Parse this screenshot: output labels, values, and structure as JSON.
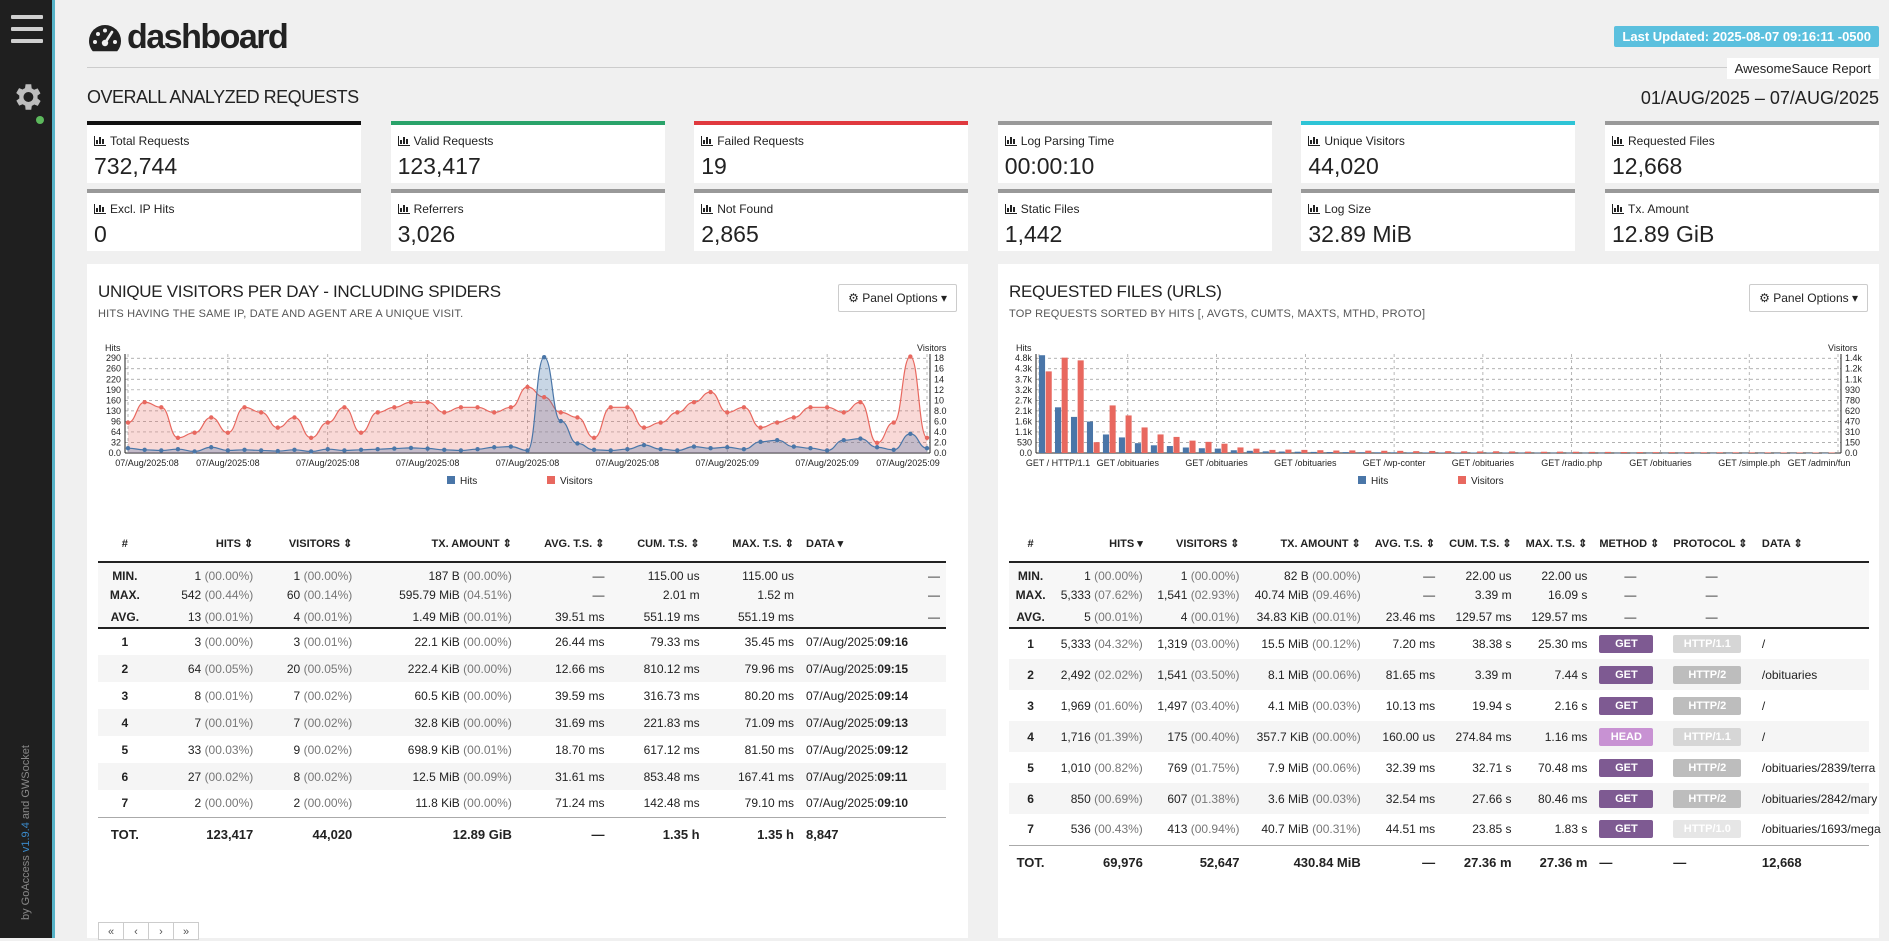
{
  "header": {
    "logo_text": "dashboard",
    "last_updated": "Last Updated: 2025-08-07 09:16:11 -0500",
    "report_title": "AwesomeSauce Report",
    "section_title": "OVERALL ANALYZED REQUESTS",
    "date_range": "01/AUG/2025 – 07/AUG/2025"
  },
  "sidebar": {
    "version_prefix": "by GoAccess",
    "version": "v1.9.4",
    "and": "and",
    "gwsocket": "GWSocket"
  },
  "cards": [
    {
      "label": "Total Requests",
      "value": "732,744",
      "color": "#111111"
    },
    {
      "label": "Valid Requests",
      "value": "123,417",
      "color": "#2aa36a"
    },
    {
      "label": "Failed Requests",
      "value": "19",
      "color": "#e0393e"
    },
    {
      "label": "Log Parsing Time",
      "value": "00:00:10",
      "color": "#999999"
    },
    {
      "label": "Unique Visitors",
      "value": "44,020",
      "color": "#2ec4d6"
    },
    {
      "label": "Requested Files",
      "value": "12,668",
      "color": "#999999"
    },
    {
      "label": "Excl. IP Hits",
      "value": "0",
      "color": "#999999"
    },
    {
      "label": "Referrers",
      "value": "3,026",
      "color": "#999999"
    },
    {
      "label": "Not Found",
      "value": "2,865",
      "color": "#999999"
    },
    {
      "label": "Static Files",
      "value": "1,442",
      "color": "#999999"
    },
    {
      "label": "Log Size",
      "value": "32.89 MiB",
      "color": "#999999"
    },
    {
      "label": "Tx. Amount",
      "value": "12.89 GiB",
      "color": "#999999"
    }
  ],
  "visitors_panel": {
    "title": "UNIQUE VISITORS PER DAY - INCLUDING SPIDERS",
    "subtitle": "HITS HAVING THE SAME IP, DATE AND AGENT ARE A UNIQUE VISIT.",
    "options": "Panel Options",
    "columns": [
      "#",
      "HITS",
      "VISITORS",
      "TX. AMOUNT",
      "AVG. T.S.",
      "CUM. T.S.",
      "MAX. T.S.",
      "DATA"
    ],
    "stats": [
      {
        "k": "MIN.",
        "hits": "1",
        "hits_pct": "(00.00%)",
        "vis": "1",
        "vis_pct": "(00.00%)",
        "tx": "187 B",
        "tx_pct": "(00.00%)",
        "avg": "—",
        "cum": "115.00 us",
        "max": "115.00 us",
        "data": "—"
      },
      {
        "k": "MAX.",
        "hits": "542",
        "hits_pct": "(00.44%)",
        "vis": "60",
        "vis_pct": "(00.14%)",
        "tx": "595.79 MiB",
        "tx_pct": "(04.51%)",
        "avg": "—",
        "cum": "2.01 m",
        "max": "1.52 m",
        "data": "—"
      },
      {
        "k": "AVG.",
        "hits": "13",
        "hits_pct": "(00.01%)",
        "vis": "4",
        "vis_pct": "(00.01%)",
        "tx": "1.49 MiB",
        "tx_pct": "(00.01%)",
        "avg": "39.51 ms",
        "cum": "551.19 ms",
        "max": "551.19 ms",
        "data": "—"
      }
    ],
    "rows": [
      {
        "n": "1",
        "hits": "3",
        "hits_pct": "(00.00%)",
        "vis": "3",
        "vis_pct": "(00.01%)",
        "tx": "22.1 KiB",
        "tx_pct": "(00.00%)",
        "avg": "26.44 ms",
        "cum": "79.33 ms",
        "max": "35.45 ms",
        "date": "07/Aug/2025:",
        "time": "09:16"
      },
      {
        "n": "2",
        "hits": "64",
        "hits_pct": "(00.05%)",
        "vis": "20",
        "vis_pct": "(00.05%)",
        "tx": "222.4 KiB",
        "tx_pct": "(00.00%)",
        "avg": "12.66 ms",
        "cum": "810.12 ms",
        "max": "79.96 ms",
        "date": "07/Aug/2025:",
        "time": "09:15"
      },
      {
        "n": "3",
        "hits": "8",
        "hits_pct": "(00.01%)",
        "vis": "7",
        "vis_pct": "(00.02%)",
        "tx": "60.5 KiB",
        "tx_pct": "(00.00%)",
        "avg": "39.59 ms",
        "cum": "316.73 ms",
        "max": "80.20 ms",
        "date": "07/Aug/2025:",
        "time": "09:14"
      },
      {
        "n": "4",
        "hits": "7",
        "hits_pct": "(00.01%)",
        "vis": "7",
        "vis_pct": "(00.02%)",
        "tx": "32.8 KiB",
        "tx_pct": "(00.00%)",
        "avg": "31.69 ms",
        "cum": "221.83 ms",
        "max": "71.09 ms",
        "date": "07/Aug/2025:",
        "time": "09:13"
      },
      {
        "n": "5",
        "hits": "33",
        "hits_pct": "(00.03%)",
        "vis": "9",
        "vis_pct": "(00.02%)",
        "tx": "698.9 KiB",
        "tx_pct": "(00.01%)",
        "avg": "18.70 ms",
        "cum": "617.12 ms",
        "max": "81.50 ms",
        "date": "07/Aug/2025:",
        "time": "09:12"
      },
      {
        "n": "6",
        "hits": "27",
        "hits_pct": "(00.02%)",
        "vis": "8",
        "vis_pct": "(00.02%)",
        "tx": "12.5 MiB",
        "tx_pct": "(00.09%)",
        "avg": "31.61 ms",
        "cum": "853.48 ms",
        "max": "167.41 ms",
        "date": "07/Aug/2025:",
        "time": "09:11"
      },
      {
        "n": "7",
        "hits": "2",
        "hits_pct": "(00.00%)",
        "vis": "2",
        "vis_pct": "(00.00%)",
        "tx": "11.8 KiB",
        "tx_pct": "(00.00%)",
        "avg": "71.24 ms",
        "cum": "142.48 ms",
        "max": "79.10 ms",
        "date": "07/Aug/2025:",
        "time": "09:10"
      }
    ],
    "total": {
      "k": "TOT.",
      "hits": "123,417",
      "vis": "44,020",
      "tx": "12.89 GiB",
      "avg": "—",
      "cum": "1.35 h",
      "max": "1.35 h",
      "data": "8,847"
    },
    "pager": [
      "«",
      "‹",
      "›",
      "»"
    ]
  },
  "files_panel": {
    "title": "REQUESTED FILES (URLS)",
    "subtitle": "TOP REQUESTS SORTED BY HITS [, AVGTS, CUMTS, MAXTS, MTHD, PROTO]",
    "options": "Panel Options",
    "columns": [
      "#",
      "HITS",
      "VISITORS",
      "TX. AMOUNT",
      "AVG. T.S.",
      "CUM. T.S.",
      "MAX. T.S.",
      "METHOD",
      "PROTOCOL",
      "DATA"
    ],
    "stats": [
      {
        "k": "MIN.",
        "hits": "1",
        "hits_pct": "(00.00%)",
        "vis": "1",
        "vis_pct": "(00.00%)",
        "tx": "82 B",
        "tx_pct": "(00.00%)",
        "avg": "—",
        "cum": "22.00 us",
        "max": "22.00 us",
        "method": "—",
        "proto": "—",
        "data": ""
      },
      {
        "k": "MAX.",
        "hits": "5,333",
        "hits_pct": "(07.62%)",
        "vis": "1,541",
        "vis_pct": "(02.93%)",
        "tx": "40.74 MiB",
        "tx_pct": "(09.46%)",
        "avg": "—",
        "cum": "3.39 m",
        "max": "16.09 s",
        "method": "—",
        "proto": "—",
        "data": ""
      },
      {
        "k": "AVG.",
        "hits": "5",
        "hits_pct": "(00.01%)",
        "vis": "4",
        "vis_pct": "(00.01%)",
        "tx": "34.83 KiB",
        "tx_pct": "(00.01%)",
        "avg": "23.46 ms",
        "cum": "129.57 ms",
        "max": "129.57 ms",
        "method": "—",
        "proto": "—",
        "data": ""
      }
    ],
    "rows": [
      {
        "n": "1",
        "hits": "5,333",
        "hits_pct": "(04.32%)",
        "vis": "1,319",
        "vis_pct": "(03.00%)",
        "tx": "15.5 MiB",
        "tx_pct": "(00.12%)",
        "avg": "7.20 ms",
        "cum": "38.38 s",
        "max": "25.30 ms",
        "method": "GET",
        "mclass": "get",
        "proto": "HTTP/1.1",
        "pclass": "h11",
        "data": "/"
      },
      {
        "n": "2",
        "hits": "2,492",
        "hits_pct": "(02.02%)",
        "vis": "1,541",
        "vis_pct": "(03.50%)",
        "tx": "8.1 MiB",
        "tx_pct": "(00.06%)",
        "avg": "81.65 ms",
        "cum": "3.39 m",
        "max": "7.44 s",
        "method": "GET",
        "mclass": "get",
        "proto": "HTTP/2",
        "pclass": "h2",
        "data": "/obituaries"
      },
      {
        "n": "3",
        "hits": "1,969",
        "hits_pct": "(01.60%)",
        "vis": "1,497",
        "vis_pct": "(03.40%)",
        "tx": "4.1 MiB",
        "tx_pct": "(00.03%)",
        "avg": "10.13 ms",
        "cum": "19.94 s",
        "max": "2.16 s",
        "method": "GET",
        "mclass": "get",
        "proto": "HTTP/2",
        "pclass": "h2",
        "data": "/"
      },
      {
        "n": "4",
        "hits": "1,716",
        "hits_pct": "(01.39%)",
        "vis": "175",
        "vis_pct": "(00.40%)",
        "tx": "357.7 KiB",
        "tx_pct": "(00.00%)",
        "avg": "160.00 us",
        "cum": "274.84 ms",
        "max": "1.16 ms",
        "method": "HEAD",
        "mclass": "head",
        "proto": "HTTP/1.1",
        "pclass": "h11",
        "data": "/"
      },
      {
        "n": "5",
        "hits": "1,010",
        "hits_pct": "(00.82%)",
        "vis": "769",
        "vis_pct": "(01.75%)",
        "tx": "7.9 MiB",
        "tx_pct": "(00.06%)",
        "avg": "32.39 ms",
        "cum": "32.71 s",
        "max": "70.48 ms",
        "method": "GET",
        "mclass": "get",
        "proto": "HTTP/2",
        "pclass": "h2",
        "data": "/obituaries/2839/terra"
      },
      {
        "n": "6",
        "hits": "850",
        "hits_pct": "(00.69%)",
        "vis": "607",
        "vis_pct": "(01.38%)",
        "tx": "3.6 MiB",
        "tx_pct": "(00.03%)",
        "avg": "32.54 ms",
        "cum": "27.66 s",
        "max": "80.46 ms",
        "method": "GET",
        "mclass": "get",
        "proto": "HTTP/2",
        "pclass": "h2",
        "data": "/obituaries/2842/mary"
      },
      {
        "n": "7",
        "hits": "536",
        "hits_pct": "(00.43%)",
        "vis": "413",
        "vis_pct": "(00.94%)",
        "tx": "40.7 MiB",
        "tx_pct": "(00.31%)",
        "avg": "44.51 ms",
        "cum": "23.85 s",
        "max": "1.83 s",
        "method": "GET",
        "mclass": "get",
        "proto": "HTTP/1.0",
        "pclass": "h10",
        "data": "/obituaries/1693/mega"
      }
    ],
    "total": {
      "k": "TOT.",
      "hits": "69,976",
      "vis": "52,647",
      "tx": "430.84 MiB",
      "avg": "—",
      "cum": "27.36 m",
      "max": "27.36 m",
      "method": "—",
      "proto": "—",
      "data": "12,668"
    }
  },
  "chart_data": [
    {
      "type": "area",
      "ylabel": "Hits",
      "y2label": "Visitors",
      "y_ticks": [
        "0.0",
        "32",
        "64",
        "96",
        "130",
        "160",
        "190",
        "220",
        "260",
        "290"
      ],
      "y2_ticks": [
        "0.0",
        "2.0",
        "4.0",
        "6.0",
        "8.0",
        "10",
        "12",
        "14",
        "16",
        "18"
      ],
      "ylim": [
        0,
        310
      ],
      "y2lim": [
        0,
        19.5
      ],
      "x_ticks": [
        "07/Aug/2025:08",
        "07/Aug/2025:08",
        "07/Aug/2025:08",
        "07/Aug/2025:08",
        "07/Aug/2025:08",
        "07/Aug/2025:08",
        "07/Aug/2025:09",
        "07/Aug/2025:09",
        "07/Aug/2025:09"
      ],
      "series": [
        {
          "name": "Hits",
          "axis": "left",
          "color": "#4a76a8",
          "values": [
            15,
            10,
            8,
            12,
            5,
            18,
            8,
            10,
            8,
            6,
            10,
            5,
            12,
            8,
            10,
            12,
            14,
            16,
            14,
            10,
            8,
            12,
            18,
            20,
            8,
            300,
            100,
            30,
            10,
            8,
            12,
            25,
            12,
            8,
            20,
            15,
            18,
            12,
            35,
            40,
            20,
            15,
            8,
            40,
            45,
            18,
            10,
            60,
            15
          ]
        },
        {
          "name": "Visitors",
          "axis": "right",
          "color": "#e8685f",
          "values": [
            6,
            10,
            9,
            3,
            4,
            7,
            4,
            9,
            8,
            5,
            7,
            3,
            6,
            9,
            4,
            8,
            9,
            10,
            10,
            8,
            9,
            9,
            8,
            9,
            13,
            11,
            8,
            7,
            3,
            9,
            9,
            5,
            6,
            8,
            10,
            12,
            8,
            9,
            5,
            6,
            7,
            9,
            9,
            8,
            10,
            2,
            6,
            19,
            3
          ]
        }
      ]
    },
    {
      "type": "bar",
      "ylabel": "Hits",
      "y2label": "Visitors",
      "y_ticks": [
        "0.0",
        "530",
        "1.1k",
        "1.6k",
        "2.1k",
        "2.7k",
        "3.2k",
        "3.7k",
        "4.3k",
        "4.8k"
      ],
      "y2_ticks": [
        "0.0",
        "150",
        "310",
        "470",
        "620",
        "780",
        "930",
        "1.1k",
        "1.2k",
        "1.4k"
      ],
      "ylim": [
        0,
        5400
      ],
      "y2lim": [
        0,
        1600
      ],
      "x_ticks": [
        "GET / HTTP/1.1",
        "GET /obituaries",
        "GET /obituaries",
        "GET /obituaries",
        "GET /wp-conter",
        "GET /obituaries",
        "GET /radio.php",
        "GET /obituaries",
        "GET /simple.ph",
        "GET /admin/fun"
      ],
      "series": [
        {
          "name": "Hits",
          "axis": "left",
          "color": "#4a76a8",
          "values": [
            5333,
            2492,
            1969,
            1716,
            1010,
            850,
            536,
            420,
            380,
            300,
            260,
            240,
            150,
            120,
            90,
            80,
            70,
            60,
            55,
            50,
            45,
            40,
            38,
            35,
            32,
            30,
            28,
            26,
            24,
            22,
            20,
            18,
            16,
            15,
            14,
            13,
            12,
            11,
            10,
            10,
            9,
            9,
            8,
            8,
            8,
            7,
            7,
            7,
            6,
            6
          ]
        },
        {
          "name": "Visitors",
          "axis": "right",
          "color": "#e8685f",
          "values": [
            1319,
            1541,
            1497,
            175,
            769,
            607,
            413,
            300,
            260,
            200,
            180,
            150,
            90,
            70,
            50,
            55,
            50,
            45,
            40,
            42,
            38,
            36,
            35,
            30,
            33,
            30,
            28,
            25,
            28,
            25,
            22,
            20,
            22,
            20,
            18,
            18,
            16,
            15,
            14,
            14,
            13,
            12,
            12,
            11,
            10,
            10,
            9,
            9,
            8,
            8
          ]
        }
      ]
    }
  ]
}
